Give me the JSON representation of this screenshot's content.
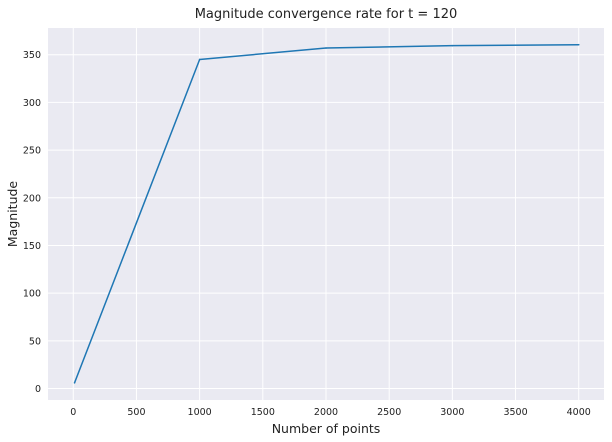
{
  "chart_data": {
    "type": "line",
    "title": "Magnitude convergence rate for t = 120",
    "xlabel": "Number of points",
    "ylabel": "Magnitude",
    "xlim": [
      -200,
      4200
    ],
    "ylim": [
      -12,
      378
    ],
    "xticks": [
      0,
      500,
      1000,
      1500,
      2000,
      2500,
      3000,
      3500,
      4000
    ],
    "xtick_labels": [
      "0",
      "500",
      "1000",
      "1500",
      "2000",
      "2500",
      "3000",
      "3500",
      "4000"
    ],
    "yticks": [
      0,
      50,
      100,
      150,
      200,
      250,
      300,
      350
    ],
    "ytick_labels": [
      "0",
      "50",
      "100",
      "150",
      "200",
      "250",
      "300",
      "350"
    ],
    "grid": true,
    "background": "#eaeaf2",
    "grid_color": "#ffffff",
    "series": [
      {
        "color": "#1f77b4",
        "x": [
          10,
          1000,
          2000,
          3000,
          4000
        ],
        "y": [
          6,
          345,
          357,
          359.5,
          360.5
        ]
      }
    ]
  }
}
